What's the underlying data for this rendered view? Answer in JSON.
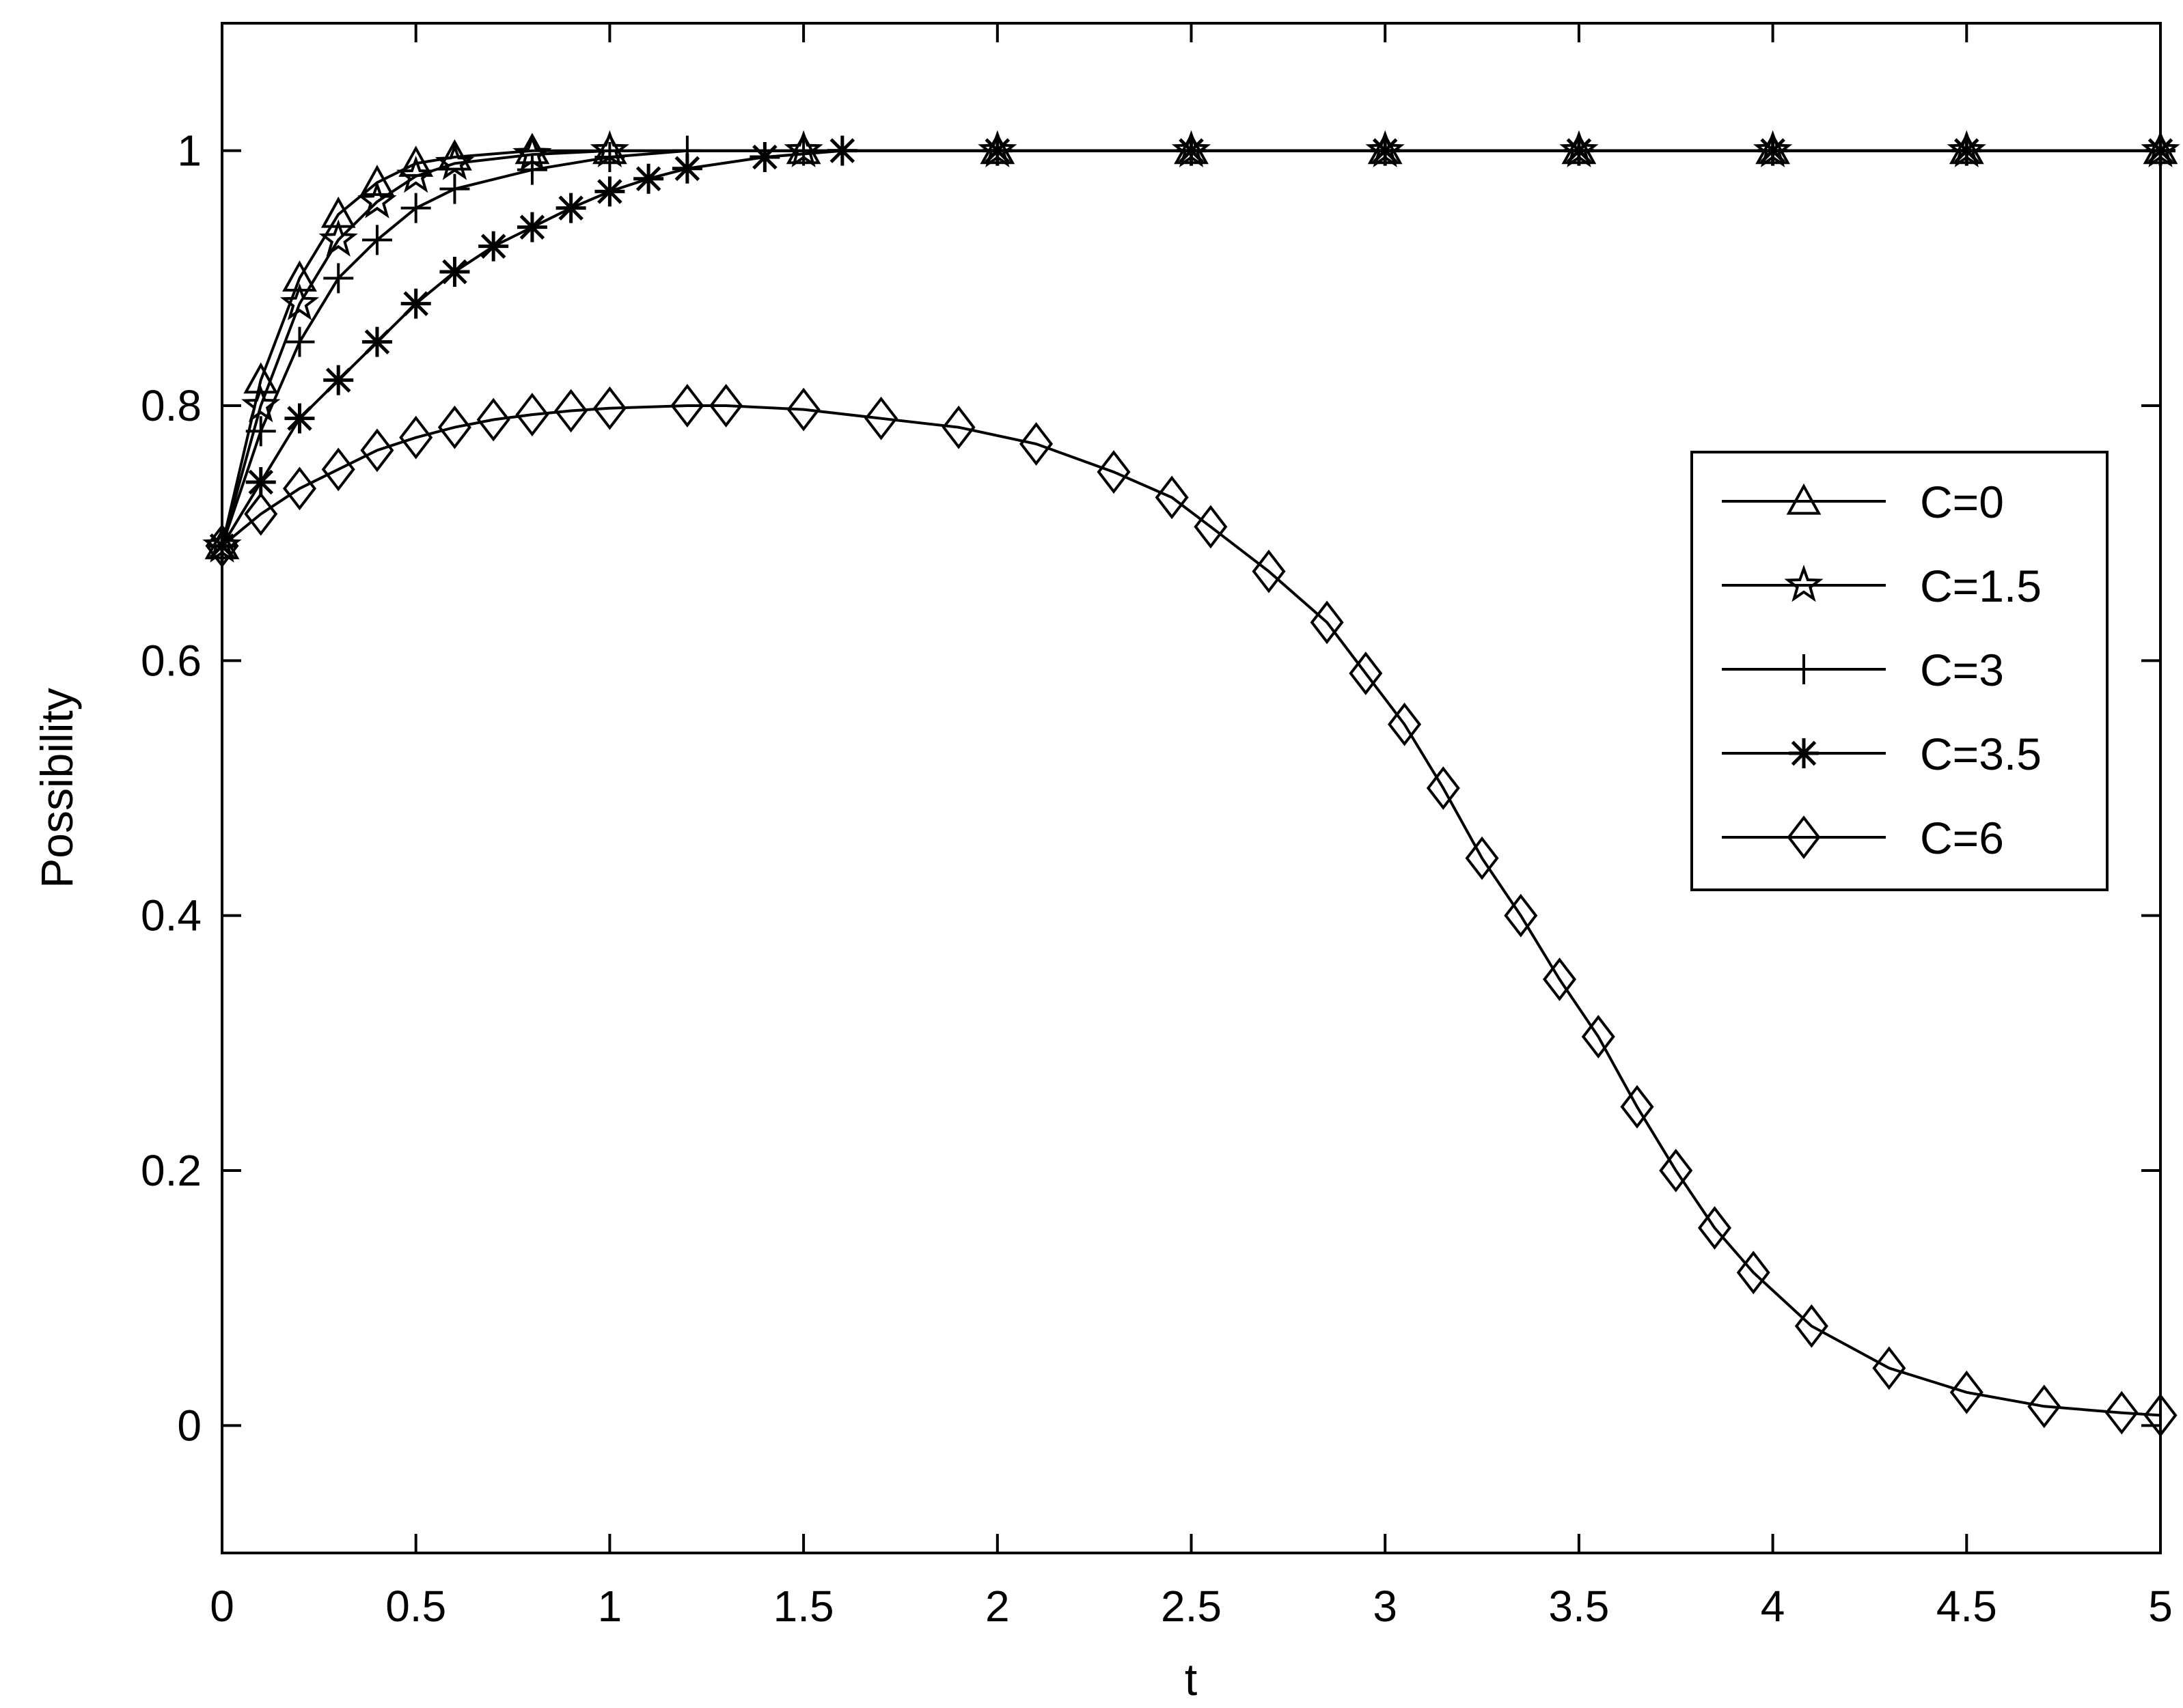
{
  "chart_data": {
    "type": "line",
    "title": "",
    "xlabel": "t",
    "ylabel": "Possibility",
    "xlim": [
      0,
      5
    ],
    "ylim": [
      -0.1,
      1.1
    ],
    "xticks": [
      "0",
      "0.5",
      "1",
      "1.5",
      "2",
      "2.5",
      "3",
      "3.5",
      "4",
      "4.5",
      "5"
    ],
    "yticks": [
      "0",
      "0.2",
      "0.4",
      "0.6",
      "0.8",
      "1"
    ],
    "grid": false,
    "legend_position": "right",
    "line_color": "#000000",
    "series": [
      {
        "name": "C=0",
        "marker": "triangle",
        "x": [
          0,
          0.1,
          0.2,
          0.3,
          0.4,
          0.5,
          0.6,
          0.8,
          1.0,
          1.5,
          2.0,
          2.5,
          3.0,
          3.5,
          4.0,
          4.5,
          5.0
        ],
        "y": [
          0.69,
          0.82,
          0.9,
          0.95,
          0.975,
          0.99,
          0.995,
          1.0,
          1.0,
          1.0,
          1.0,
          1.0,
          1.0,
          1.0,
          1.0,
          1.0,
          1.0
        ]
      },
      {
        "name": "C=1.5",
        "marker": "pentagram",
        "x": [
          0,
          0.1,
          0.2,
          0.3,
          0.4,
          0.5,
          0.6,
          0.8,
          1.0,
          1.5,
          2.0,
          2.5,
          3.0,
          3.5,
          4.0,
          4.5,
          5.0
        ],
        "y": [
          0.69,
          0.8,
          0.88,
          0.93,
          0.96,
          0.98,
          0.99,
          0.997,
          1.0,
          1.0,
          1.0,
          1.0,
          1.0,
          1.0,
          1.0,
          1.0,
          1.0
        ]
      },
      {
        "name": "C=3",
        "marker": "plus",
        "x": [
          0,
          0.1,
          0.2,
          0.3,
          0.4,
          0.5,
          0.6,
          0.8,
          1.0,
          1.2,
          1.5,
          2.0,
          2.5,
          3.0,
          3.5,
          4.0,
          4.5,
          5.0
        ],
        "y": [
          0.69,
          0.78,
          0.85,
          0.9,
          0.93,
          0.955,
          0.97,
          0.985,
          0.995,
          1.0,
          1.0,
          1.0,
          1.0,
          1.0,
          1.0,
          1.0,
          1.0,
          1.0
        ]
      },
      {
        "name": "C=3.5",
        "marker": "asterisk",
        "x": [
          0,
          0.1,
          0.2,
          0.3,
          0.4,
          0.5,
          0.6,
          0.7,
          0.8,
          0.9,
          1.0,
          1.1,
          1.2,
          1.4,
          1.6,
          2.0,
          2.5,
          3.0,
          3.5,
          4.0,
          4.5,
          5.0
        ],
        "y": [
          0.69,
          0.74,
          0.79,
          0.82,
          0.85,
          0.88,
          0.905,
          0.925,
          0.94,
          0.955,
          0.968,
          0.978,
          0.986,
          0.995,
          1.0,
          1.0,
          1.0,
          1.0,
          1.0,
          1.0,
          1.0,
          1.0
        ]
      },
      {
        "name": "C=6",
        "marker": "diamond",
        "x": [
          0,
          0.1,
          0.2,
          0.3,
          0.4,
          0.5,
          0.6,
          0.7,
          0.8,
          0.9,
          1.0,
          1.2,
          1.3,
          1.5,
          1.7,
          1.9,
          2.1,
          2.3,
          2.45,
          2.55,
          2.7,
          2.85,
          2.95,
          3.05,
          3.15,
          3.25,
          3.35,
          3.45,
          3.55,
          3.65,
          3.75,
          3.85,
          3.95,
          4.1,
          4.3,
          4.5,
          4.7,
          4.9,
          5.0
        ],
        "y": [
          0.69,
          0.715,
          0.735,
          0.75,
          0.765,
          0.775,
          0.783,
          0.789,
          0.793,
          0.796,
          0.798,
          0.8,
          0.8,
          0.797,
          0.79,
          0.783,
          0.77,
          0.748,
          0.728,
          0.705,
          0.67,
          0.63,
          0.59,
          0.55,
          0.5,
          0.445,
          0.4,
          0.35,
          0.305,
          0.25,
          0.2,
          0.155,
          0.12,
          0.078,
          0.045,
          0.026,
          0.015,
          0.01,
          0.008
        ]
      }
    ]
  }
}
